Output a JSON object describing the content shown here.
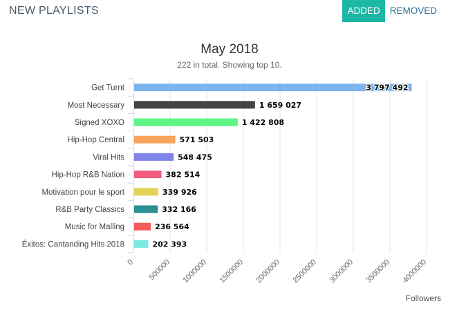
{
  "header": {
    "title": "NEW PLAYLISTS",
    "tabs": [
      {
        "label": "ADDED",
        "active": true
      },
      {
        "label": "REMOVED",
        "active": false
      }
    ]
  },
  "colors": {
    "accent": "#1db8a5"
  },
  "chart_data": {
    "type": "bar",
    "orientation": "horizontal",
    "title": "May 2018",
    "subtitle": "222 in total. Showing top 10.",
    "xlabel": "Followers",
    "ylabel": "",
    "xlim": [
      0,
      4000000
    ],
    "x_ticks": [
      "0",
      "500000",
      "1000000",
      "1500000",
      "2000000",
      "2500000",
      "3000000",
      "3500000",
      "4000000"
    ],
    "grid": true,
    "categories": [
      "Get Turnt",
      "Most Necessary",
      "Signed XOXO",
      "Hip-Hop Central",
      "Viral Hits",
      "Hip-Hop R&B Nation",
      "Motivation pour le sport",
      "R&B Party Classics",
      "Music for Malling",
      "Éxitos: Cantanding Hits 2018"
    ],
    "values": [
      3797492,
      1659027,
      1422808,
      571503,
      548475,
      382514,
      339926,
      332166,
      236564,
      202393
    ],
    "value_labels": [
      "3 797 492",
      "1 659 027",
      "1 422 808",
      "571 503",
      "548 475",
      "382 514",
      "339 926",
      "332 166",
      "236 564",
      "202 393"
    ],
    "colors": [
      "#7cb5ec",
      "#434348",
      "#5ef585",
      "#f7a35c",
      "#8085e9",
      "#f15c80",
      "#e4d354",
      "#2b908f",
      "#f45b5b",
      "#7be8e0"
    ]
  }
}
